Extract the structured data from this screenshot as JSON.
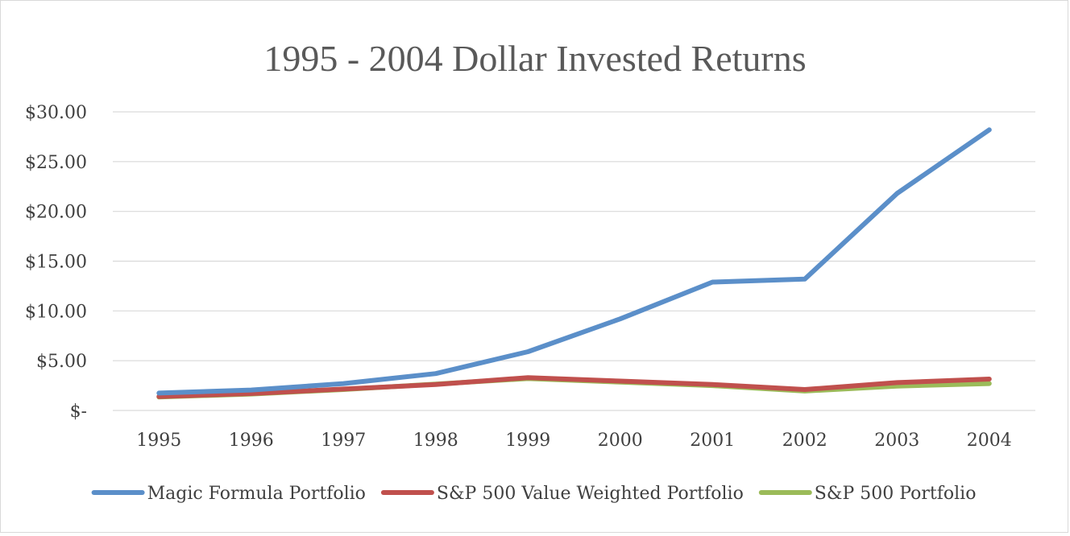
{
  "chart_data": {
    "type": "line",
    "title": "1995 - 2004 Dollar Invested Returns",
    "xlabel": "",
    "ylabel": "",
    "categories": [
      "1995",
      "1996",
      "1997",
      "1998",
      "1999",
      "2000",
      "2001",
      "2002",
      "2003",
      "2004"
    ],
    "ylim": [
      0,
      30
    ],
    "yticks": [
      0,
      5,
      10,
      15,
      20,
      25,
      30
    ],
    "ytick_labels": [
      "$-",
      "$5.00",
      "$10.00",
      "$15.00",
      "$20.00",
      "$25.00",
      "$30.00"
    ],
    "grid": true,
    "legend_position": "bottom",
    "series": [
      {
        "name": "Magic Formula Portfolio",
        "color": "#5b8fc9",
        "values": [
          1.75,
          2.05,
          2.7,
          3.7,
          5.9,
          9.2,
          12.9,
          13.2,
          21.8,
          28.2
        ]
      },
      {
        "name": "S&P 500 Value Weighted Portfolio",
        "color": "#c0504d",
        "values": [
          1.4,
          1.7,
          2.15,
          2.6,
          3.3,
          2.95,
          2.6,
          2.1,
          2.8,
          3.15
        ]
      },
      {
        "name": "S&P 500 Portfolio",
        "color": "#9bbb59",
        "values": [
          1.35,
          1.65,
          2.1,
          2.65,
          3.2,
          2.85,
          2.5,
          1.95,
          2.45,
          2.7
        ]
      }
    ]
  }
}
